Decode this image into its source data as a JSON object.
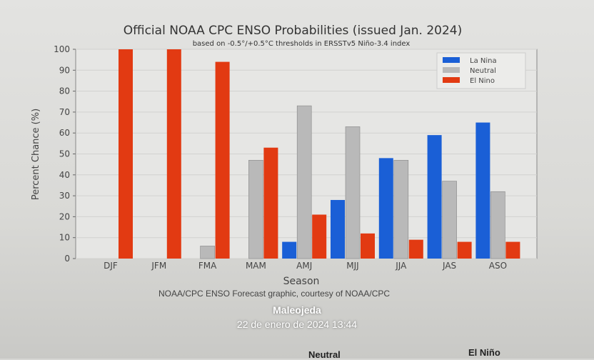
{
  "chart_data": {
    "type": "bar",
    "title": "Official NOAA CPC ENSO Probabilities (issued Jan. 2024)",
    "subtitle": "based on -0.5°/+0.5°C thresholds in ERSSTv5 Niño-3.4 index",
    "xlabel": "Season",
    "ylabel": "Percent Chance (%)",
    "ylim": [
      0,
      100
    ],
    "yticks": [
      0,
      10,
      20,
      30,
      40,
      50,
      60,
      70,
      80,
      90,
      100
    ],
    "grid": true,
    "legend_position": "top-right",
    "categories": [
      "DJF",
      "JFM",
      "FMA",
      "MAM",
      "AMJ",
      "MJJ",
      "JJA",
      "JAS",
      "ASO"
    ],
    "series": [
      {
        "name": "La Nina",
        "color": "#1a5fd6",
        "values": [
          0,
          0,
          0,
          0,
          8,
          28,
          48,
          59,
          65
        ]
      },
      {
        "name": "Neutral",
        "color": "#b9b9b9",
        "values": [
          0,
          0,
          6,
          47,
          73,
          63,
          47,
          37,
          32
        ]
      },
      {
        "name": "El Nino",
        "color": "#e23a12",
        "values": [
          100,
          100,
          94,
          53,
          21,
          12,
          9,
          8,
          8
        ]
      }
    ]
  },
  "credit": "NOAA/CPC ENSO Forecast graphic, courtesy of NOAA/CPC",
  "photo_overlay": {
    "author": "Maleojeda",
    "timestamp": "22 de enero de 2024 13:44"
  },
  "below_table": {
    "col_neutral": "Neutral",
    "col_el_nino": "El Niño"
  }
}
